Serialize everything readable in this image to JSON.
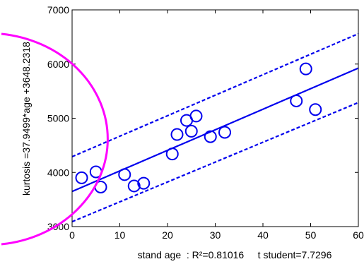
{
  "chart_data": {
    "type": "scatter",
    "xlabel": "stand age  : R²=0.81016     t student=7.7296",
    "ylabel": "kurtosis =37.9499*age +3648.2318",
    "xlim": [
      0,
      60
    ],
    "ylim": [
      3000,
      7000
    ],
    "x_ticks": [
      0,
      10,
      20,
      30,
      40,
      50,
      60
    ],
    "y_ticks": [
      3000,
      4000,
      5000,
      6000,
      7000
    ],
    "x_tick_labels": [
      "0",
      "10",
      "20",
      "30",
      "40",
      "50",
      "60"
    ],
    "y_tick_labels": [
      "3000",
      "4000",
      "5000",
      "6000",
      "7000"
    ],
    "grid": false,
    "points": {
      "x": [
        2,
        5,
        6,
        11,
        13,
        15,
        21,
        22,
        24,
        25,
        26,
        29,
        32,
        47,
        49,
        51
      ],
      "y": [
        3900,
        4010,
        3730,
        3960,
        3750,
        3800,
        4340,
        4700,
        4960,
        4760,
        5040,
        4660,
        4740,
        5320,
        5910,
        5160
      ]
    },
    "fit_line": {
      "slope": 37.9499,
      "intercept": 3648.2318,
      "x_range": [
        0,
        60
      ]
    },
    "confidence_band": {
      "upper": {
        "x": [
          0,
          60
        ],
        "y": [
          4290,
          6560
        ]
      },
      "lower": {
        "x": [
          0,
          60
        ],
        "y": [
          3090,
          5290
        ]
      }
    },
    "colors": {
      "data": "#0000ee",
      "highlight_arc": "#ff00ff",
      "axis": "#000000"
    }
  }
}
